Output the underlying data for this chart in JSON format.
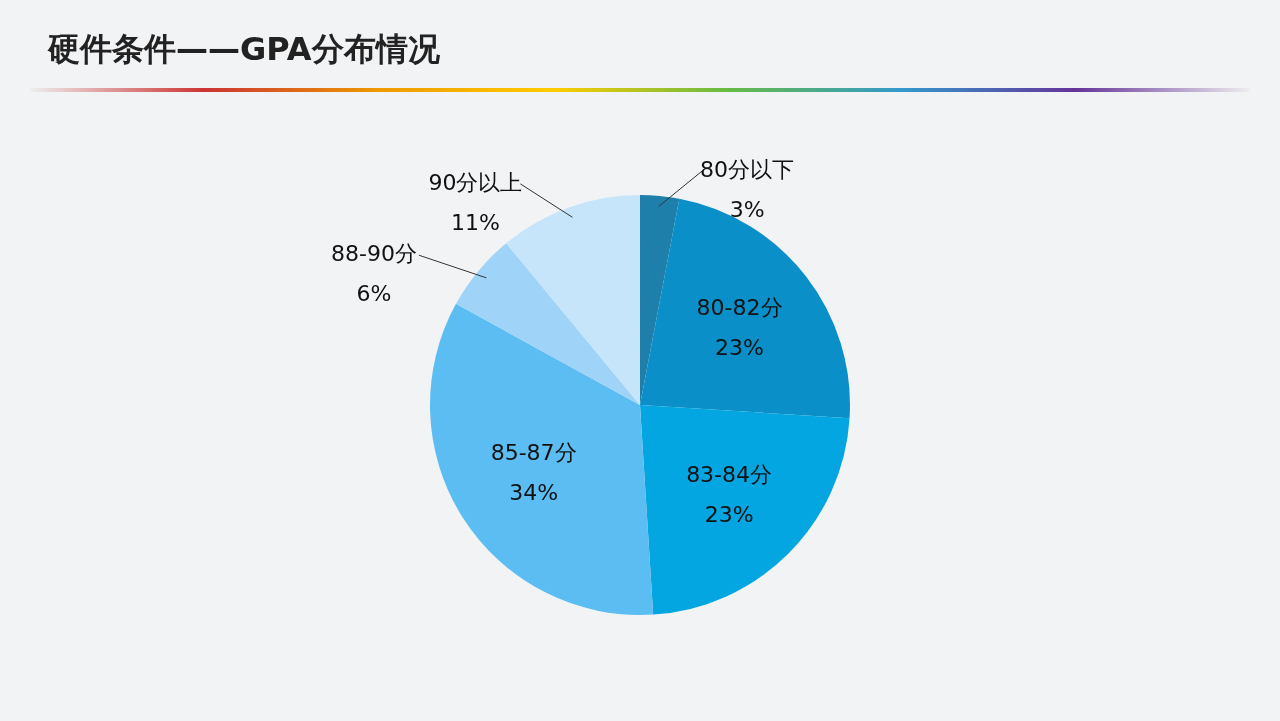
{
  "chart_data": {
    "type": "pie",
    "title": "硬件条件——GPA分布情况",
    "categories": [
      "80分以下",
      "80-82分",
      "83-84分",
      "85-87分",
      "88-90分",
      "90分以上"
    ],
    "values": [
      3,
      23,
      23,
      34,
      6,
      11
    ],
    "value_labels": [
      "3%",
      "23%",
      "23%",
      "34%",
      "6%",
      "11%"
    ],
    "colors": [
      "#1f7fab",
      "#0b8fc9",
      "#04a6e2",
      "#5bbdf2",
      "#9fd3f7",
      "#c6e4fa"
    ],
    "legend": false
  }
}
